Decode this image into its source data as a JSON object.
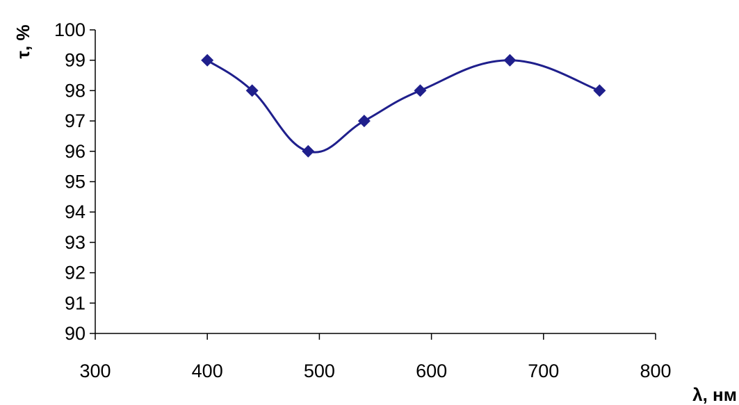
{
  "chart_data": {
    "type": "line",
    "title": "",
    "xlabel": "λ, нм",
    "ylabel": "τ, %",
    "xlim": [
      300,
      800
    ],
    "ylim": [
      90,
      100
    ],
    "x_ticks": [
      "300",
      "400",
      "500",
      "600",
      "700",
      "800"
    ],
    "y_ticks": [
      "90",
      "91",
      "92",
      "93",
      "94",
      "95",
      "96",
      "97",
      "98",
      "99",
      "100"
    ],
    "series": [
      {
        "x": [
          400,
          440,
          490,
          540,
          590,
          670,
          750
        ],
        "y": [
          99,
          98,
          96,
          97,
          98,
          99,
          98
        ]
      }
    ],
    "line_color": "#1f1f8c",
    "marker": "diamond",
    "smooth": true,
    "grid": false,
    "legend": "none"
  }
}
